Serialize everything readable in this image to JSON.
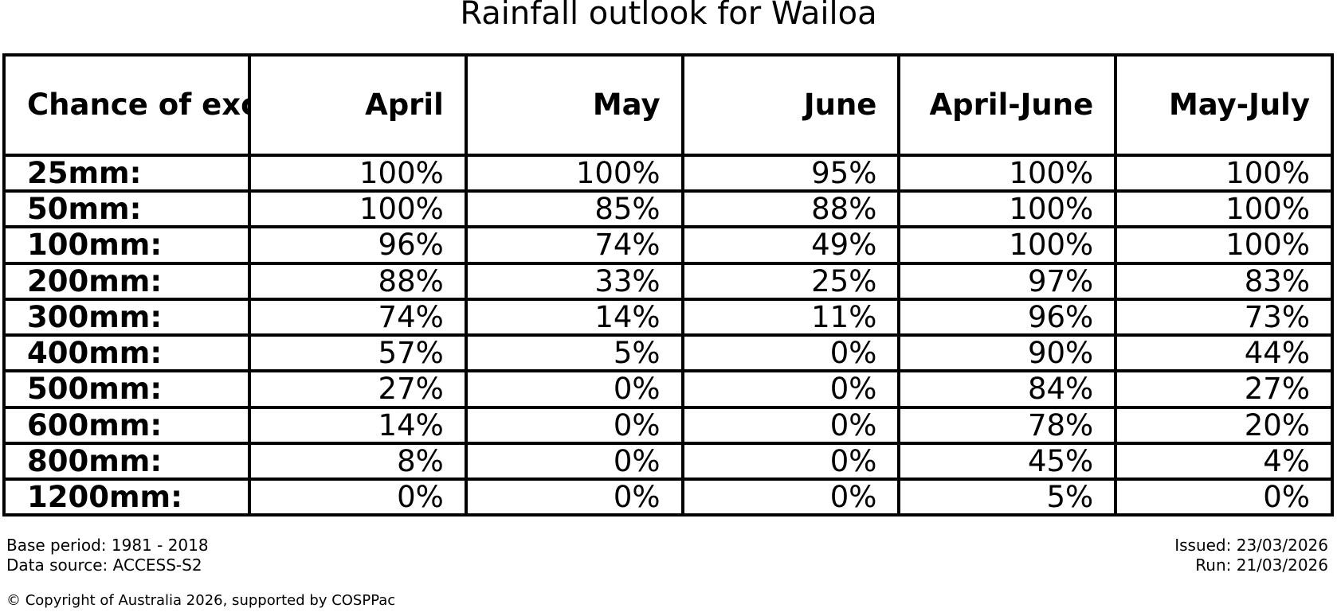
{
  "title": "Rainfall outlook for Wailoa",
  "colors": {
    "background": "#ffffff",
    "text": "#000000",
    "table_border": "#000000"
  },
  "table": {
    "header": [
      "Chance of\nexceeding\na threshold:",
      "April",
      "May",
      "June",
      "April-June",
      "May-July"
    ],
    "rows": [
      {
        "label": "25mm:",
        "values": [
          "100%",
          "100%",
          "95%",
          "100%",
          "100%"
        ]
      },
      {
        "label": "50mm:",
        "values": [
          "100%",
          "85%",
          "88%",
          "100%",
          "100%"
        ]
      },
      {
        "label": "100mm:",
        "values": [
          "96%",
          "74%",
          "49%",
          "100%",
          "100%"
        ]
      },
      {
        "label": "200mm:",
        "values": [
          "88%",
          "33%",
          "25%",
          "97%",
          "83%"
        ]
      },
      {
        "label": "300mm:",
        "values": [
          "74%",
          "14%",
          "11%",
          "96%",
          "73%"
        ]
      },
      {
        "label": "400mm:",
        "values": [
          "57%",
          "5%",
          "0%",
          "90%",
          "44%"
        ]
      },
      {
        "label": "500mm:",
        "values": [
          "27%",
          "0%",
          "0%",
          "84%",
          "27%"
        ]
      },
      {
        "label": "600mm:",
        "values": [
          "14%",
          "0%",
          "0%",
          "78%",
          "20%"
        ]
      },
      {
        "label": "800mm:",
        "values": [
          "8%",
          "0%",
          "0%",
          "45%",
          "4%"
        ]
      },
      {
        "label": "1200mm:",
        "values": [
          "0%",
          "0%",
          "0%",
          "5%",
          "0%"
        ]
      }
    ]
  },
  "footer": {
    "base_period": "Base period: 1981 - 2018",
    "data_source": "Data source: ACCESS-S2",
    "issued": "Issued: 23/03/2026",
    "run": "Run: 21/03/2026",
    "copyright": "© Copyright of Australia 2026, supported by COSPPac"
  },
  "chart_data": {
    "type": "table",
    "title": "Rainfall outlook for Wailoa",
    "row_label_header": "Chance of exceeding a threshold:",
    "columns": [
      "April",
      "May",
      "June",
      "April-June",
      "May-July"
    ],
    "thresholds": [
      "25mm",
      "50mm",
      "100mm",
      "200mm",
      "300mm",
      "400mm",
      "500mm",
      "600mm",
      "800mm",
      "1200mm"
    ],
    "values_percent": [
      [
        100,
        100,
        95,
        100,
        100
      ],
      [
        100,
        85,
        88,
        100,
        100
      ],
      [
        96,
        74,
        49,
        100,
        100
      ],
      [
        88,
        33,
        25,
        97,
        83
      ],
      [
        74,
        14,
        11,
        96,
        73
      ],
      [
        57,
        5,
        0,
        90,
        44
      ],
      [
        27,
        0,
        0,
        84,
        27
      ],
      [
        14,
        0,
        0,
        78,
        20
      ],
      [
        8,
        0,
        0,
        45,
        4
      ],
      [
        0,
        0,
        0,
        5,
        0
      ]
    ],
    "base_period": "1981 - 2018",
    "data_source": "ACCESS-S2",
    "issued_date": "23/03/2026",
    "run_date": "21/03/2026"
  }
}
